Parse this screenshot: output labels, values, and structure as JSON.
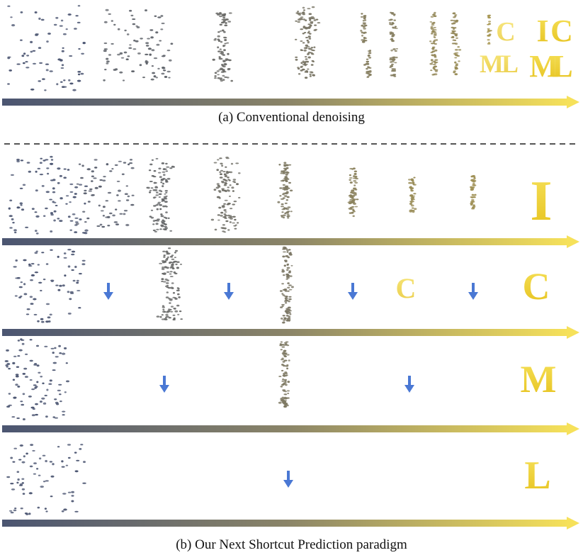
{
  "caption_a": "(a) Conventional denoising",
  "caption_b": "(b) Our Next Shortcut Prediction paradigm",
  "colors": {
    "noise_start": "#4b5571",
    "mid": "#8a8468",
    "end_yellow": "#f6e15a",
    "letter_yellow": "#f1d640",
    "arrow_blue": "#4a78d4",
    "separator": "#555555"
  },
  "section_a": {
    "stages": [
      "noise",
      "noise",
      "noise",
      "noise",
      "blobs",
      "blobs",
      "letters",
      "letters"
    ],
    "final_letters": [
      "I",
      "C",
      "M",
      "L"
    ]
  },
  "section_b": {
    "rows": [
      {
        "target_letter": "I",
        "arrows": 0
      },
      {
        "target_letter": "C",
        "arrows": 4
      },
      {
        "target_letter": "M",
        "arrows": 2
      },
      {
        "target_letter": "L",
        "arrows": 1
      }
    ]
  }
}
